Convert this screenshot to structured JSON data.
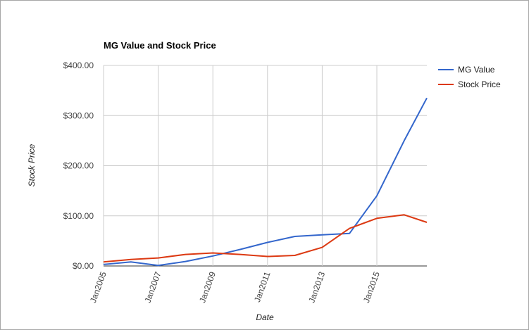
{
  "chart_data": {
    "type": "line",
    "title": "MG Value and Stock Price",
    "xlabel": "Date",
    "ylabel": "Stock Price",
    "x": [
      2005,
      2006,
      2007,
      2008,
      2009,
      2010,
      2011,
      2012,
      2013,
      2014,
      2015,
      2016,
      2016.83
    ],
    "x_tick_labels": [
      "Jan2005",
      "Jan2007",
      "Jan2009",
      "Jan2011",
      "Jan2013",
      "Jan2015"
    ],
    "y_tick_labels": [
      "$0.00",
      "$100.00",
      "$200.00",
      "$300.00",
      "$400.00"
    ],
    "ylim": [
      0,
      400
    ],
    "grid": true,
    "legend_position": "right",
    "series": [
      {
        "name": "MG Value",
        "color": "#3366cc",
        "values": [
          3,
          8,
          1,
          9,
          20,
          33,
          47,
          59,
          62,
          65,
          140,
          250,
          335
        ]
      },
      {
        "name": "Stock Price",
        "color": "#dc3912",
        "values": [
          8,
          13,
          16,
          23,
          26,
          23,
          19,
          21,
          37,
          75,
          95,
          102,
          87
        ]
      }
    ]
  }
}
